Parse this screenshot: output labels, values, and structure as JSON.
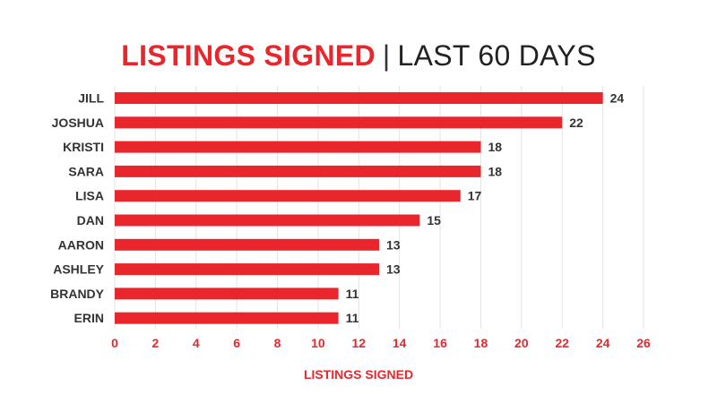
{
  "title_main": "LISTINGS SIGNED",
  "title_separator": "|",
  "title_sub": "LAST 60 DAYS",
  "colors": {
    "bar": "#e8262b",
    "title_main": "#e8262b",
    "axis_text": "#e8262b",
    "category_text": "#333333",
    "value_text": "#333333",
    "grid": "#e3e3e3"
  },
  "chart_data": {
    "type": "bar",
    "orientation": "horizontal",
    "categories": [
      "JILL",
      "JOSHUA",
      "KRISTI",
      "SARA",
      "LISA",
      "DAN",
      "AARON",
      "ASHLEY",
      "BRANDY",
      "ERIN"
    ],
    "values": [
      24,
      22,
      18,
      18,
      17,
      15,
      13,
      13,
      11,
      11
    ],
    "xlabel": "LISTINGS SIGNED",
    "ylabel": "",
    "xlim": [
      0,
      26
    ],
    "xticks": [
      0,
      2,
      4,
      6,
      8,
      10,
      12,
      14,
      16,
      18,
      20,
      22,
      24,
      26
    ],
    "grid": true,
    "data_labels": true
  }
}
